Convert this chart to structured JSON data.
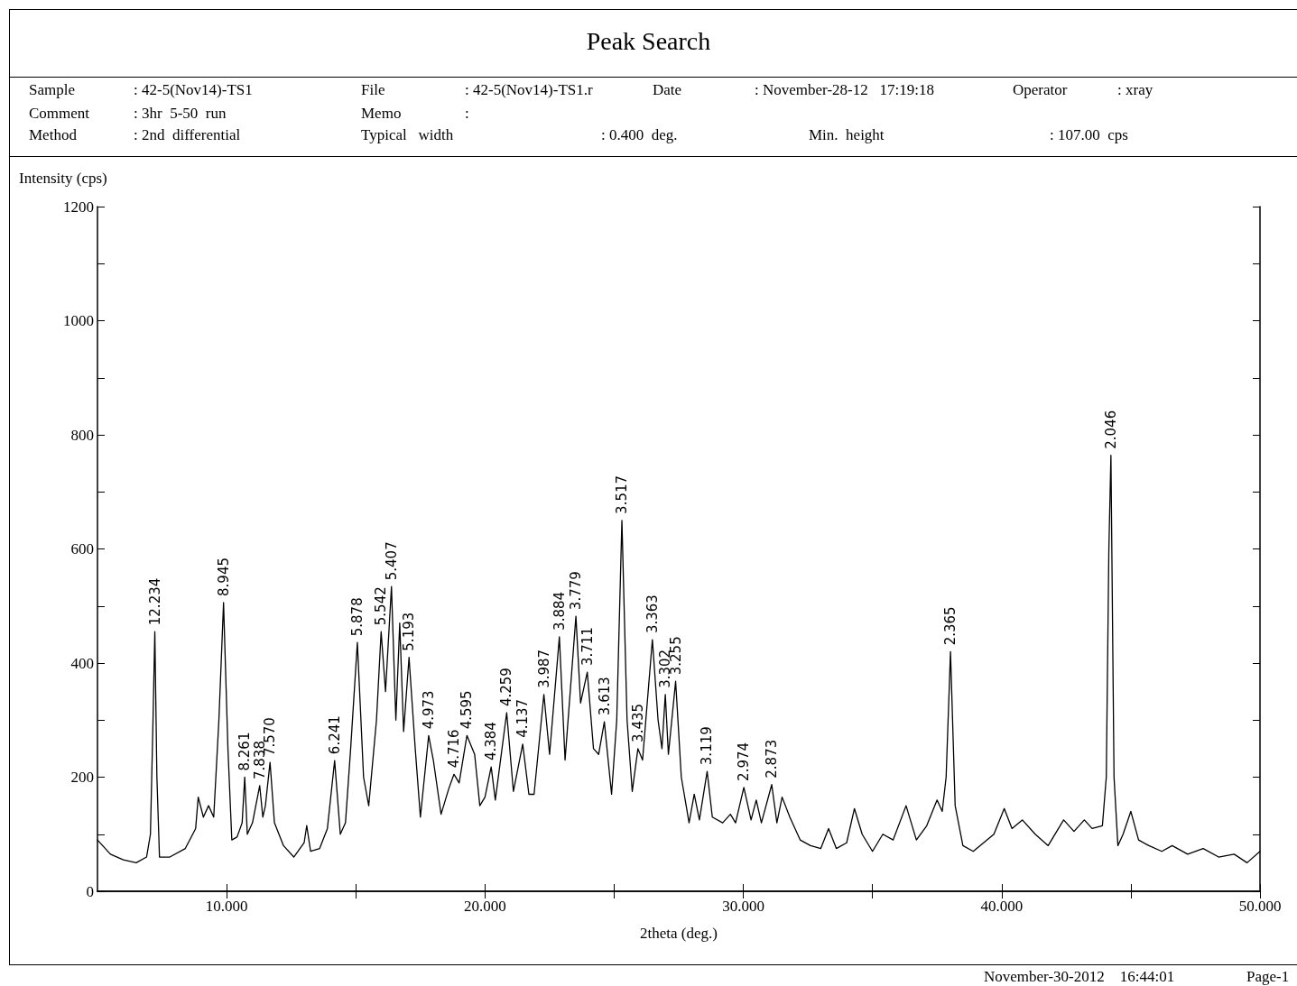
{
  "chart_data": {
    "type": "line",
    "title": "Peak Search",
    "xlabel": "2theta (deg.)",
    "ylabel": "Intensity (cps)",
    "color": "#000000",
    "marker": "none",
    "line_style": "solid",
    "grid": false,
    "xlim": [
      5,
      50
    ],
    "xticks": [
      {
        "value": 10,
        "label": "10.000"
      },
      {
        "value": 15,
        "label": null
      },
      {
        "value": 20,
        "label": "20.000"
      },
      {
        "value": 25,
        "label": null
      },
      {
        "value": 30,
        "label": "30.000"
      },
      {
        "value": 35,
        "label": null
      },
      {
        "value": 40,
        "label": "40.000"
      },
      {
        "value": 45,
        "label": null
      },
      {
        "value": 50,
        "label": "50.000"
      }
    ],
    "ylim": [
      0,
      1200
    ],
    "yticks": [
      0,
      {
        "value": 100,
        "label": null
      },
      200,
      {
        "value": 300,
        "label": null
      },
      400,
      {
        "value": 500,
        "label": null
      },
      600,
      {
        "value": 700,
        "label": null
      },
      800,
      {
        "value": 900,
        "label": null
      },
      1000,
      {
        "value": 1100,
        "label": null
      },
      1200
    ],
    "x": [
      5.0,
      5.5,
      6.0,
      6.5,
      6.9,
      7.05,
      7.15,
      7.22,
      7.3,
      7.4,
      7.8,
      8.4,
      8.8,
      8.9,
      9.1,
      9.3,
      9.5,
      9.7,
      9.88,
      10.05,
      10.2,
      10.4,
      10.6,
      10.7,
      10.8,
      11.0,
      11.28,
      11.4,
      11.5,
      11.68,
      11.85,
      12.2,
      12.6,
      13.0,
      13.1,
      13.25,
      13.6,
      13.9,
      14.18,
      14.4,
      14.6,
      14.8,
      15.06,
      15.3,
      15.5,
      15.8,
      15.98,
      16.15,
      16.38,
      16.55,
      16.7,
      16.85,
      17.06,
      17.3,
      17.5,
      17.82,
      18.0,
      18.3,
      18.6,
      18.8,
      19.0,
      19.3,
      19.6,
      19.8,
      20.0,
      20.24,
      20.4,
      20.84,
      21.1,
      21.46,
      21.7,
      21.9,
      22.28,
      22.5,
      22.88,
      23.1,
      23.3,
      23.52,
      23.7,
      23.96,
      24.2,
      24.4,
      24.62,
      24.9,
      25.1,
      25.3,
      25.5,
      25.7,
      25.92,
      26.1,
      26.48,
      26.7,
      26.85,
      26.98,
      27.1,
      27.38,
      27.6,
      27.9,
      28.1,
      28.3,
      28.6,
      28.8,
      29.2,
      29.5,
      29.7,
      30.02,
      30.3,
      30.5,
      30.7,
      31.1,
      31.3,
      31.5,
      31.8,
      32.2,
      32.6,
      33.0,
      33.3,
      33.6,
      34.0,
      34.3,
      34.6,
      35.0,
      35.4,
      35.8,
      36.3,
      36.7,
      37.1,
      37.5,
      37.7,
      37.85,
      38.02,
      38.2,
      38.5,
      38.9,
      39.3,
      39.7,
      40.1,
      40.4,
      40.8,
      41.3,
      41.8,
      42.4,
      42.8,
      43.2,
      43.5,
      43.9,
      44.05,
      44.15,
      44.23,
      44.35,
      44.5,
      44.7,
      45.0,
      45.3,
      45.7,
      46.2,
      46.6,
      47.2,
      47.8,
      48.4,
      49.0,
      49.5,
      50.0
    ],
    "values": [
      90,
      65,
      55,
      50,
      60,
      100,
      300,
      455,
      200,
      60,
      60,
      75,
      110,
      165,
      130,
      150,
      130,
      300,
      506,
      250,
      90,
      95,
      120,
      200,
      100,
      120,
      185,
      130,
      150,
      226,
      120,
      80,
      60,
      85,
      115,
      70,
      75,
      110,
      229,
      100,
      120,
      250,
      436,
      200,
      150,
      300,
      455,
      350,
      534,
      300,
      470,
      280,
      410,
      250,
      130,
      273,
      230,
      135,
      180,
      205,
      190,
      273,
      240,
      150,
      165,
      218,
      160,
      313,
      175,
      258,
      170,
      170,
      345,
      240,
      446,
      230,
      350,
      482,
      330,
      384,
      250,
      240,
      297,
      170,
      300,
      650,
      300,
      175,
      250,
      230,
      441,
      300,
      250,
      345,
      240,
      368,
      200,
      120,
      170,
      125,
      210,
      130,
      120,
      135,
      120,
      182,
      125,
      160,
      120,
      187,
      120,
      165,
      130,
      90,
      80,
      75,
      110,
      75,
      85,
      145,
      100,
      70,
      100,
      90,
      150,
      90,
      115,
      160,
      140,
      200,
      420,
      150,
      80,
      70,
      85,
      100,
      145,
      110,
      125,
      100,
      80,
      125,
      105,
      125,
      110,
      115,
      200,
      600,
      764,
      200,
      80,
      100,
      140,
      90,
      80,
      70,
      80,
      65,
      75,
      60,
      65,
      50,
      70
    ],
    "annotations": [
      "Sample",
      ": 42-5(Nov14)-TS1",
      "File",
      ": 42-5(Nov14)-TS1.r",
      "Date",
      ": November-28-12   17:19:18",
      "Operator",
      ": xray",
      "Comment",
      ": 3hr  5-50  run",
      "Memo",
      ":",
      "Method",
      ": 2nd  differential",
      "Typical   width",
      ": 0.400  deg.",
      "Min.  height",
      ": 107.00  cps",
      "November-30-2012    16:44:01",
      "Page-1",
      {
        "text": "12.234",
        "x": 7.22,
        "y": 455
      },
      {
        "text": "8.945",
        "x": 9.88,
        "y": 506
      },
      {
        "text": "8.261",
        "x": 10.7,
        "y": 200
      },
      {
        "text": "7.838",
        "x": 11.28,
        "y": 185
      },
      {
        "text": "7.570",
        "x": 11.68,
        "y": 226
      },
      {
        "text": "6.241",
        "x": 14.18,
        "y": 229
      },
      {
        "text": "5.878",
        "x": 15.06,
        "y": 436
      },
      {
        "text": "5.542",
        "x": 15.98,
        "y": 455
      },
      {
        "text": "5.407",
        "x": 16.38,
        "y": 534
      },
      {
        "text": "5.193",
        "x": 17.06,
        "y": 410
      },
      {
        "text": "4.973",
        "x": 17.82,
        "y": 273
      },
      {
        "text": "4.716",
        "x": 18.8,
        "y": 205
      },
      {
        "text": "4.595",
        "x": 19.3,
        "y": 273
      },
      {
        "text": "4.384",
        "x": 20.24,
        "y": 218
      },
      {
        "text": "4.259",
        "x": 20.84,
        "y": 313
      },
      {
        "text": "4.137",
        "x": 21.46,
        "y": 258
      },
      {
        "text": "3.987",
        "x": 22.28,
        "y": 345
      },
      {
        "text": "3.884",
        "x": 22.88,
        "y": 446
      },
      {
        "text": "3.779",
        "x": 23.52,
        "y": 482
      },
      {
        "text": "3.711",
        "x": 23.96,
        "y": 384
      },
      {
        "text": "3.613",
        "x": 24.62,
        "y": 297
      },
      {
        "text": "3.517",
        "x": 25.3,
        "y": 650
      },
      {
        "text": "3.435",
        "x": 25.92,
        "y": 250
      },
      {
        "text": "3.363",
        "x": 26.48,
        "y": 441
      },
      {
        "text": "3.302",
        "x": 26.98,
        "y": 345
      },
      {
        "text": "3.255",
        "x": 27.38,
        "y": 368
      },
      {
        "text": "3.119",
        "x": 28.6,
        "y": 210
      },
      {
        "text": "2.974",
        "x": 30.02,
        "y": 182
      },
      {
        "text": "2.873",
        "x": 31.1,
        "y": 187
      },
      {
        "text": "2.365",
        "x": 38.02,
        "y": 420
      },
      {
        "text": "2.046",
        "x": 44.23,
        "y": 764
      }
    ]
  }
}
